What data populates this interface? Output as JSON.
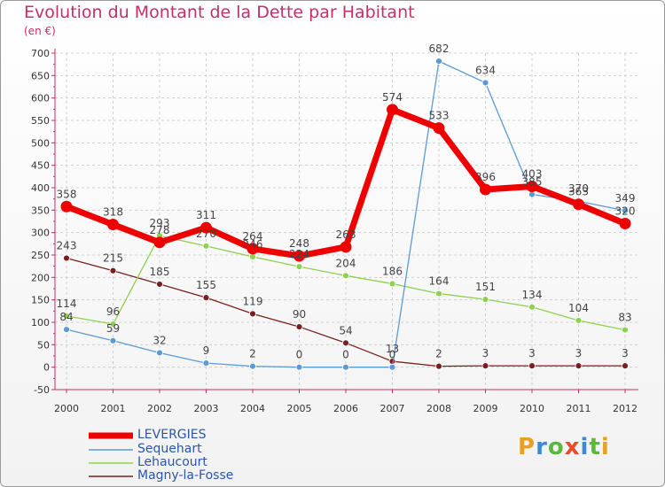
{
  "header": {
    "title": "Evolution du Montant de la Dette par Habitant",
    "unit": "(en €)"
  },
  "logo": {
    "text": "Proxiti",
    "colors": [
      "#e8a020",
      "#3a8ad8",
      "#5cb83a",
      "#e84a2a",
      "#3a8ad8",
      "#5cb83a",
      "#e8a020"
    ]
  },
  "chart_data": {
    "type": "line",
    "title": "Evolution du Montant de la Dette par Habitant",
    "ylabel": "(en €)",
    "xlabel": "",
    "categories": [
      "2000",
      "2001",
      "2002",
      "2003",
      "2004",
      "2005",
      "2006",
      "2007",
      "2008",
      "2009",
      "2010",
      "2011",
      "2012"
    ],
    "ylim": [
      -50,
      700
    ],
    "yticks": [
      "-50",
      "0",
      "50",
      "100",
      "150",
      "200",
      "250",
      "300",
      "350",
      "400",
      "450",
      "500",
      "550",
      "600",
      "650",
      "700"
    ],
    "grid": true,
    "legend_position": "bottom-left",
    "series": [
      {
        "name": "LEVERGIES",
        "color": "#ee0000",
        "values": [
          358,
          318,
          278,
          311,
          264,
          248,
          268,
          574,
          533,
          396,
          403,
          363,
          320
        ],
        "labels": [
          "358",
          "318",
          "278",
          "311",
          "264",
          "248",
          "268",
          "574",
          "533",
          "396",
          "403",
          "363",
          "320"
        ]
      },
      {
        "name": "Sequehart",
        "color": "#5b9bd5",
        "values": [
          84,
          59,
          32,
          9,
          2,
          0,
          0,
          0,
          682,
          634,
          385,
          370,
          349
        ],
        "labels": [
          "84",
          "59",
          "32",
          "9",
          "2",
          "0",
          "0",
          "0",
          "682",
          "634",
          "385",
          "370",
          "349"
        ]
      },
      {
        "name": "Lehaucourt",
        "color": "#8ed14f",
        "values": [
          114,
          96,
          293,
          270,
          246,
          224,
          204,
          186,
          164,
          151,
          134,
          104,
          83
        ],
        "labels": [
          "114",
          "96",
          "293",
          "270",
          "246",
          "224",
          "204",
          "186",
          "164",
          "151",
          "134",
          "104",
          "83"
        ]
      },
      {
        "name": "Magny-la-Fosse",
        "color": "#7a1f1f",
        "values": [
          243,
          215,
          185,
          155,
          119,
          90,
          54,
          13,
          2,
          3,
          3,
          3,
          3
        ],
        "labels": [
          "243",
          "215",
          "185",
          "155",
          "119",
          "90",
          "54",
          "13",
          "2",
          "3",
          "3",
          "3",
          "3"
        ]
      }
    ]
  }
}
